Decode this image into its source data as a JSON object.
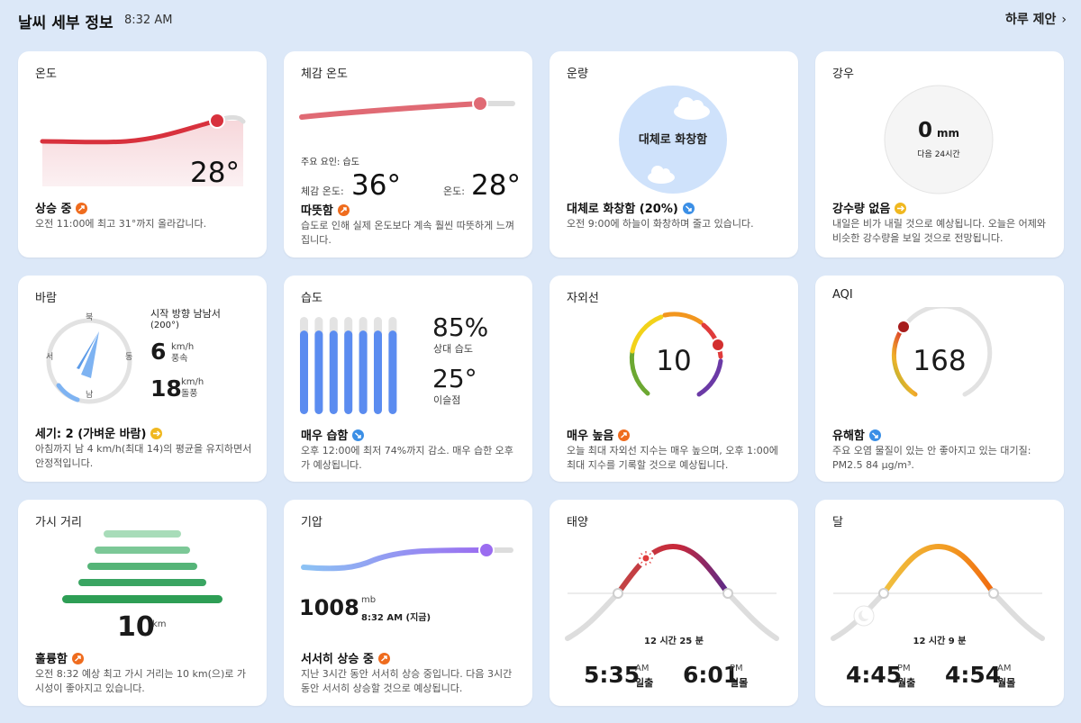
{
  "header": {
    "title": "날씨 세부 정보",
    "time": "8:32 AM",
    "daily_link": "하루 제안",
    "chevron": "›"
  },
  "temperature": {
    "title": "온도",
    "value": "28°",
    "status": "상승 중",
    "trend": "up",
    "desc": "오전 11:00에 최고 31°까지 올라갑니다."
  },
  "feels_like": {
    "title": "체감 온도",
    "factor": "주요 요인: 습도",
    "feels_label": "체감 온도:",
    "feels_value": "36°",
    "temp_label": "온도:",
    "temp_value": "28°",
    "status": "따뜻함",
    "trend": "up",
    "desc": "습도로 인해 실제 온도보다 계속 훨씬 따뜻하게 느껴집니다."
  },
  "cloud": {
    "title": "운량",
    "circle_label": "대체로 화창함",
    "status": "대체로 화창함 (20%)",
    "trend": "down",
    "desc": "오전 9:00에 하늘이 화창하며 줄고 있습니다."
  },
  "rain": {
    "title": "강우",
    "amount": "0",
    "unit": "mm",
    "period": "다음 24시간",
    "status": "강수량 없음",
    "trend": "flat",
    "desc": "내일은 비가 내릴 것으로 예상됩니다. 오늘은 어제와 비슷한 강수량을 보일 것으로 전망됩니다."
  },
  "wind": {
    "title": "바람",
    "compass": {
      "n": "북",
      "e": "동",
      "s": "남",
      "w": "서"
    },
    "direction_label": "시작 방향 남남서",
    "direction_deg": "(200°)",
    "speed": "6",
    "speed_unit": "km/h",
    "speed_label": "풍속",
    "gust": "18",
    "gust_unit": "km/h",
    "gust_label": "돌풍",
    "status": "세기: 2 (가벼운 바람)",
    "trend": "flat",
    "desc": "아침까지 남 4 km/h(최대 14)의 평균을 유지하면서 안정적입니다."
  },
  "humidity": {
    "title": "습도",
    "value": "85%",
    "value_label": "상대 습도",
    "dew": "25°",
    "dew_label": "이슬점",
    "bars": [
      0.86,
      0.86,
      0.86,
      0.86,
      0.86,
      0.86,
      0.86
    ],
    "status": "매우 습함",
    "trend": "down",
    "desc": "오후 12:00에 최저 74%까지 감소. 매우 습한 오후가 예상됩니다."
  },
  "uv": {
    "title": "자외선",
    "value": "10",
    "level_fraction": 0.83,
    "status": "매우 높음",
    "trend": "up",
    "desc": "오늘 최대 자외선 지수는 매우 높으며, 오후 1:00에 최대 지수를 기록할 것으로 예상됩니다."
  },
  "aqi": {
    "title": "AQI",
    "value": "168",
    "level_fraction": 0.34,
    "status": "유해함",
    "trend": "down",
    "desc": "주요 오염 물질이 있는 안 좋아지고 있는 대기질: PM2.5 84 μg/m³."
  },
  "visibility": {
    "title": "가시 거리",
    "value": "10",
    "unit": "km",
    "status": "훌륭함",
    "trend": "up",
    "desc": "오전 8:32 예상 최고 가시 거리는 10 km(으)로 가시성이 좋아지고 있습니다."
  },
  "pressure": {
    "title": "기압",
    "value": "1008",
    "unit": "mb",
    "time": "8:32 AM (지금)",
    "status": "서서히 상승 중",
    "trend": "up",
    "desc": "지난 3시간 동안 서서히 상승 중입니다. 다음 3시간 동안 서서히 상승할 것으로 예상됩니다."
  },
  "sun": {
    "title": "태양",
    "duration": "12 시간 25 분",
    "rise_time": "5:35",
    "rise_ampm": "AM",
    "rise_label": "일출",
    "set_time": "6:01",
    "set_ampm": "PM",
    "set_label": "일몰"
  },
  "moon": {
    "title": "달",
    "duration": "12 시간 9 분",
    "rise_time": "4:45",
    "rise_ampm": "PM",
    "rise_label": "월출",
    "set_time": "4:54",
    "set_ampm": "AM",
    "set_label": "월몰"
  },
  "colors": {
    "page_bg": "#dce8f8",
    "card_bg": "#ffffff",
    "temp_line": "#d8313d",
    "feels_line": "#e06a74",
    "humidity_bar": "#5b8cf0",
    "pressure_dot": "#9b6cf0",
    "visibility_green": "#2e9e55",
    "trend_up": "#ef6c1e",
    "trend_down": "#3b8fe6",
    "trend_flat": "#f0b820"
  }
}
